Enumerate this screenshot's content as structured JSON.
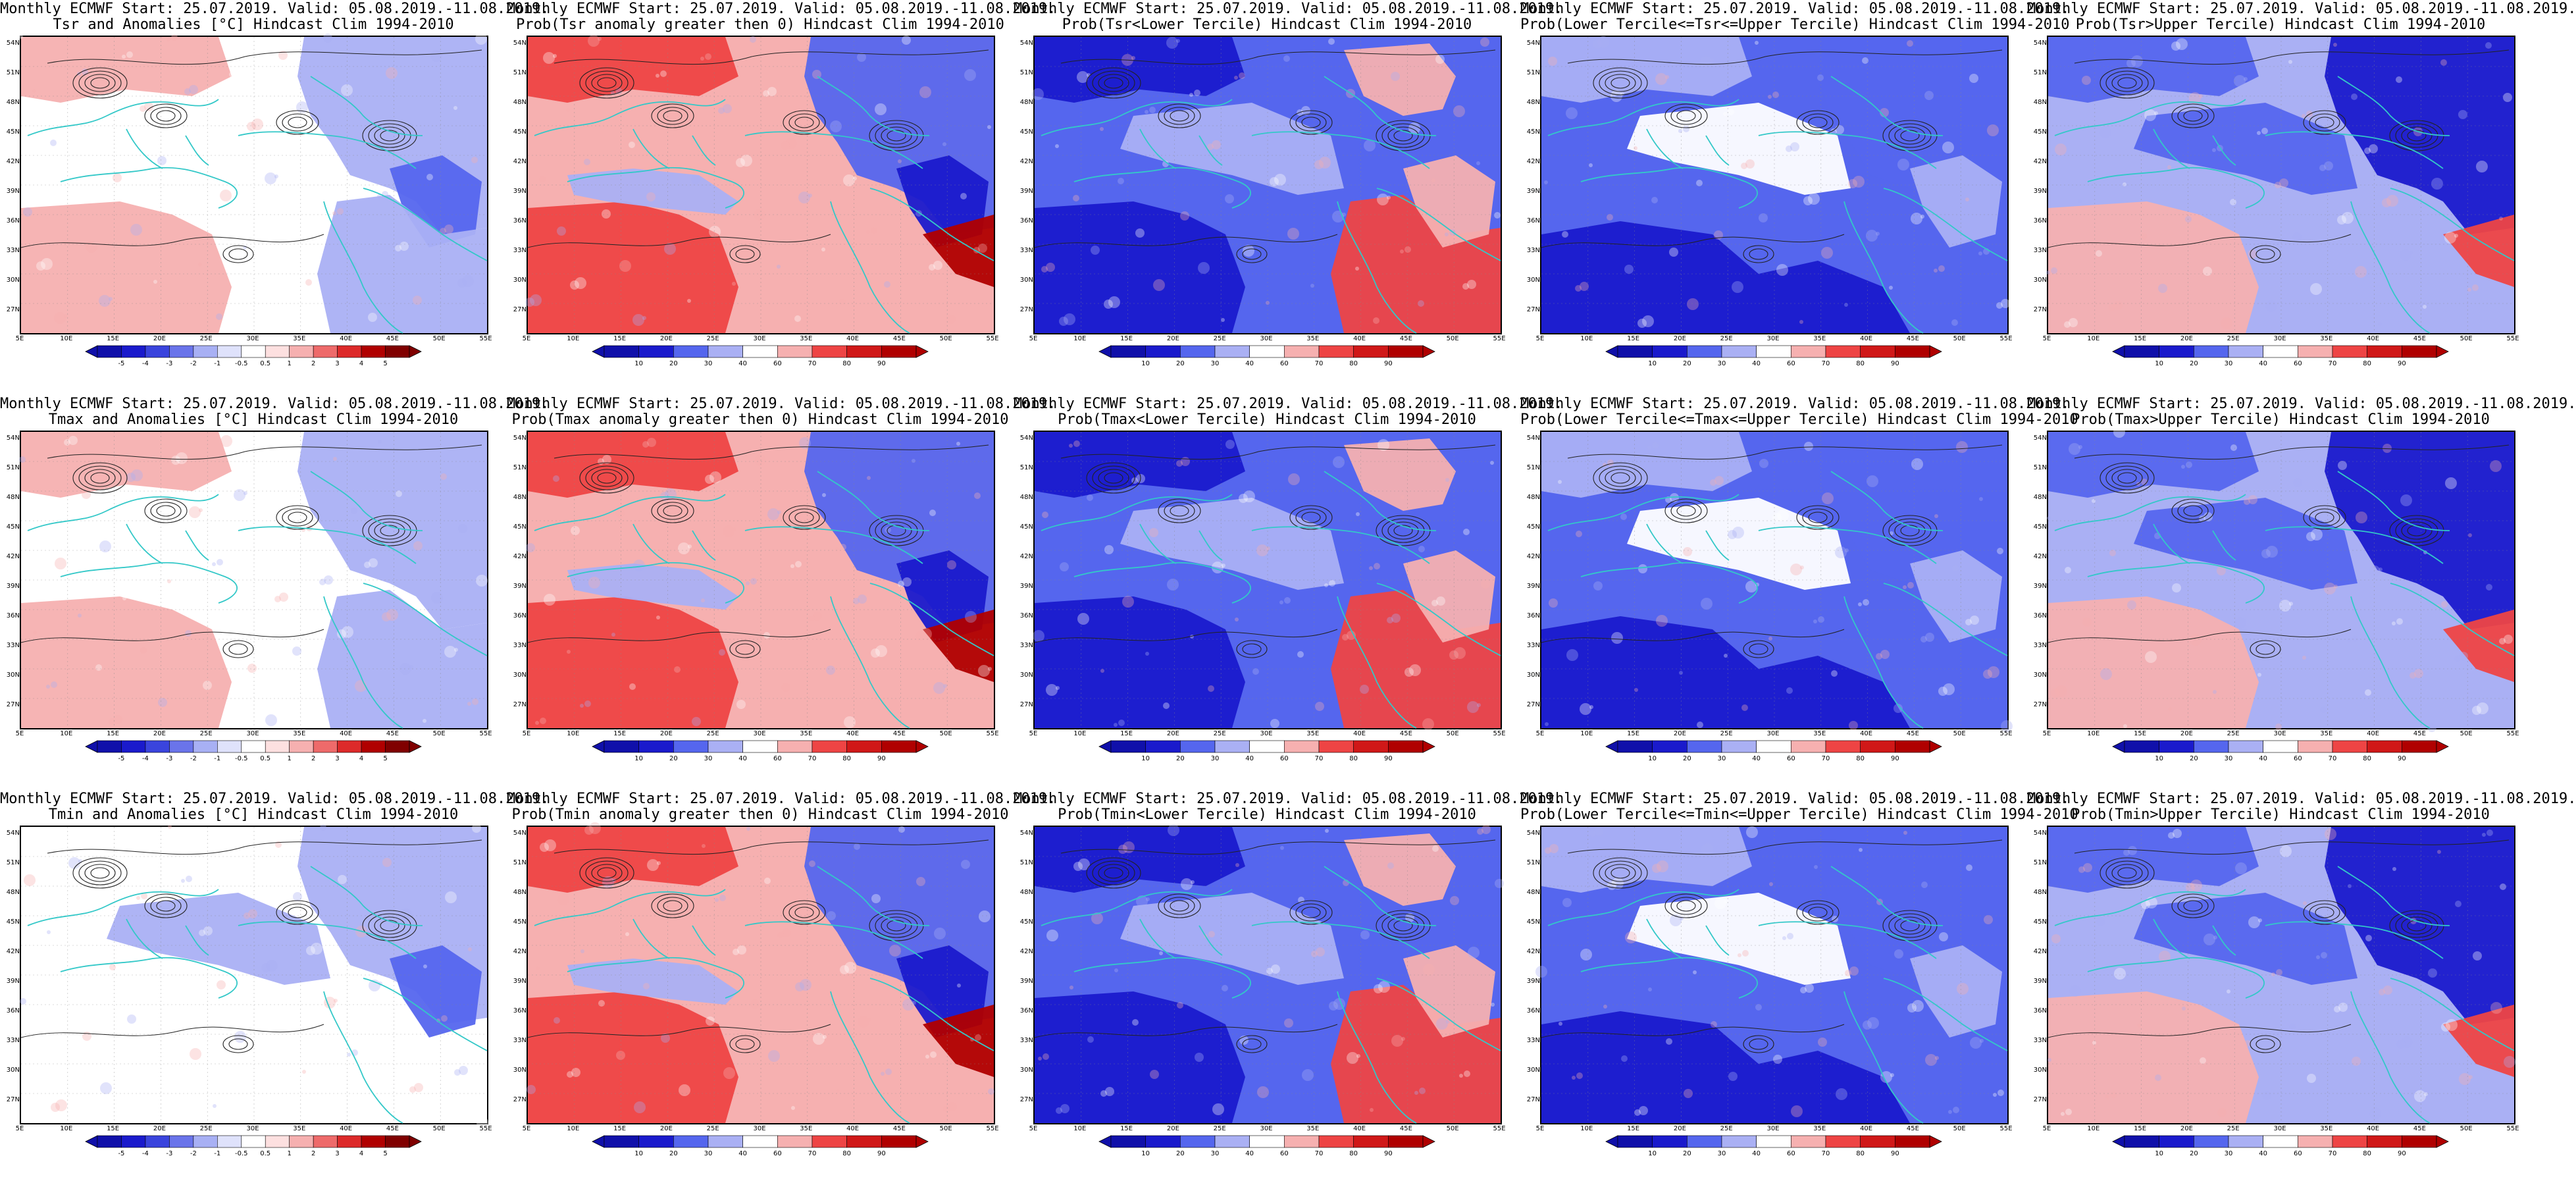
{
  "figure": {
    "lat_labels": [
      "54N",
      "51N",
      "48N",
      "45N",
      "42N",
      "39N",
      "36N",
      "33N",
      "30N",
      "27N"
    ],
    "lon_labels": [
      "5E",
      "10E",
      "15E",
      "20E",
      "25E",
      "30E",
      "35E",
      "40E",
      "45E",
      "50E",
      "55E"
    ],
    "colors": {
      "coast": "#33c8c8",
      "contour": "#222222",
      "strong_blue": "#1a1acc",
      "mid_blue": "#5566ee",
      "light_blue": "#aab0f4",
      "light_red": "#f6b0b0",
      "mid_red": "#ee4444",
      "strong_red": "#b00000"
    },
    "anomaly_colorbar_labels": [
      "-5",
      "-4",
      "-3",
      "-2",
      "-1",
      "-0.5",
      "0.5",
      "1",
      "2",
      "3",
      "4",
      "5"
    ],
    "prob_colorbar_labels": [
      "10",
      "20",
      "30",
      "40",
      "60",
      "70",
      "80",
      "90"
    ],
    "panels": [
      {
        "line1": "Monthly ECMWF Start: 25.07.2019. Valid: 05.08.2019.-11.08.2019.",
        "line2": "Tsr and Anomalies [°C] Hindcast Clim 1994-2010",
        "kind": "anomaly",
        "pattern": "tsr_anom"
      },
      {
        "line1": "Monthly ECMWF Start: 25.07.2019. Valid: 05.08.2019.-11.08.2019.",
        "line2": "Prob(Tsr anomaly greater then 0) Hindcast Clim 1994-2010",
        "kind": "prob",
        "pattern": "warm_west"
      },
      {
        "line1": "Monthly ECMWF Start: 25.07.2019. Valid: 05.08.2019.-11.08.2019.",
        "line2": "Prob(Tsr<Lower Tercile) Hindcast Clim 1994-2010",
        "kind": "prob",
        "pattern": "cold_west"
      },
      {
        "line1": "Monthly ECMWF Start: 25.07.2019. Valid: 05.08.2019.-11.08.2019.",
        "line2": "Prob(Lower Tercile<=Tsr<=Upper Tercile) Hindcast Clim 1994-2010",
        "kind": "prob",
        "pattern": "middle"
      },
      {
        "line1": "Monthly ECMWF Start: 25.07.2019. Valid: 05.08.2019.-11.08.2019.",
        "line2": "Prob(Tsr>Upper Tercile) Hindcast Clim 1994-2010",
        "kind": "prob",
        "pattern": "upper"
      },
      {
        "line1": "Monthly ECMWF Start: 25.07.2019. Valid: 05.08.2019.-11.08.2019.",
        "line2": "Tmax and Anomalies [°C] Hindcast Clim 1994-2010",
        "kind": "anomaly",
        "pattern": "tmax_anom"
      },
      {
        "line1": "Monthly ECMWF Start: 25.07.2019. Valid: 05.08.2019.-11.08.2019.",
        "line2": "Prob(Tmax anomaly greater then 0) Hindcast Clim 1994-2010",
        "kind": "prob",
        "pattern": "warm_west"
      },
      {
        "line1": "Monthly ECMWF Start: 25.07.2019. Valid: 05.08.2019.-11.08.2019.",
        "line2": "Prob(Tmax<Lower Tercile) Hindcast Clim 1994-2010",
        "kind": "prob",
        "pattern": "cold_west"
      },
      {
        "line1": "Monthly ECMWF Start: 25.07.2019. Valid: 05.08.2019.-11.08.2019.",
        "line2": "Prob(Lower Tercile<=Tmax<=Upper Tercile) Hindcast Clim 1994-2010",
        "kind": "prob",
        "pattern": "middle"
      },
      {
        "line1": "Monthly ECMWF Start: 25.07.2019. Valid: 05.08.2019.-11.08.2019.",
        "line2": "Prob(Tmax>Upper Tercile) Hindcast Clim 1994-2010",
        "kind": "prob",
        "pattern": "upper"
      },
      {
        "line1": "Monthly ECMWF Start: 25.07.2019. Valid: 05.08.2019.-11.08.2019.",
        "line2": "Tmin and Anomalies [°C] Hindcast Clim 1994-2010",
        "kind": "anomaly",
        "pattern": "tmin_anom"
      },
      {
        "line1": "Monthly ECMWF Start: 25.07.2019. Valid: 05.08.2019.-11.08.2019.",
        "line2": "Prob(Tmin anomaly greater then 0) Hindcast Clim 1994-2010",
        "kind": "prob",
        "pattern": "warm_west"
      },
      {
        "line1": "Monthly ECMWF Start: 25.07.2019. Valid: 05.08.2019.-11.08.2019.",
        "line2": "Prob(Tmin<Lower Tercile) Hindcast Clim 1994-2010",
        "kind": "prob",
        "pattern": "cold_west"
      },
      {
        "line1": "Monthly ECMWF Start: 25.07.2019. Valid: 05.08.2019.-11.08.2019.",
        "line2": "Prob(Lower Tercile<=Tmin<=Upper Tercile) Hindcast Clim 1994-2010",
        "kind": "prob",
        "pattern": "middle"
      },
      {
        "line1": "Monthly ECMWF Start: 25.07.2019. Valid: 05.08.2019.-11.08.2019.",
        "line2": "Prob(Tmin>Upper Tercile) Hindcast Clim 1994-2010",
        "kind": "prob",
        "pattern": "upper"
      }
    ]
  }
}
